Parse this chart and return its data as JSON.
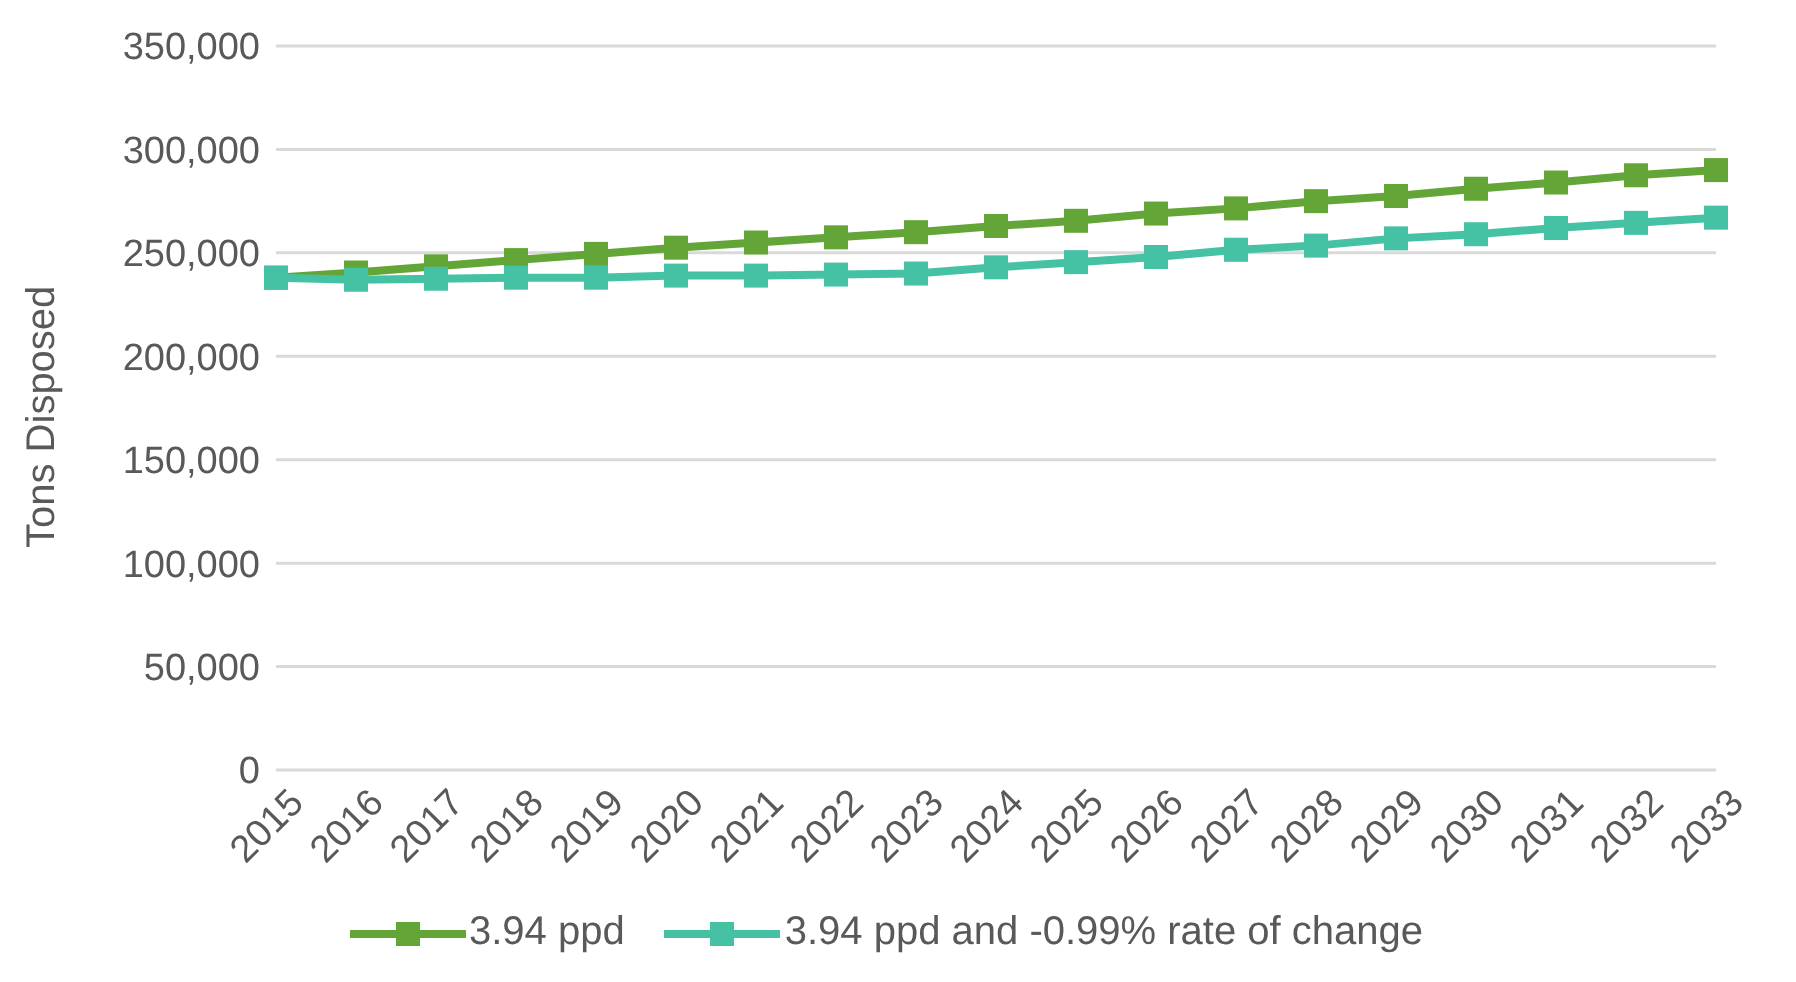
{
  "chart_data": {
    "type": "line",
    "ylabel": "Tons Disposed",
    "categories": [
      "2015",
      "2016",
      "2017",
      "2018",
      "2019",
      "2020",
      "2021",
      "2022",
      "2023",
      "2024",
      "2025",
      "2026",
      "2027",
      "2028",
      "2029",
      "2030",
      "2031",
      "2032",
      "2033"
    ],
    "series": [
      {
        "name": "3.94 ppd",
        "color": "#63a537",
        "values": [
          238000,
          240500,
          243500,
          246500,
          249500,
          252500,
          255000,
          257500,
          260000,
          263000,
          265500,
          269000,
          271500,
          275000,
          277500,
          281000,
          284000,
          287500,
          290000
        ]
      },
      {
        "name": "3.94 ppd and -0.99% rate of change",
        "color": "#45c1a4",
        "values": [
          238000,
          237000,
          237500,
          238000,
          238000,
          239000,
          239000,
          239500,
          240000,
          243000,
          245500,
          248000,
          251500,
          253500,
          257000,
          259000,
          262000,
          264500,
          267000
        ]
      }
    ],
    "ylim": [
      0,
      350000
    ],
    "yticks": [
      0,
      {
        "value": 50000,
        "label": "50,000"
      },
      {
        "value": 100000,
        "label": "100,000"
      },
      {
        "value": 150000,
        "label": "150,000"
      },
      {
        "value": 200000,
        "label": "200,000"
      },
      {
        "value": 250000,
        "label": "250,000"
      },
      {
        "value": 300000,
        "label": "300,000"
      },
      {
        "value": 350000,
        "label": "350,000"
      }
    ],
    "grid": "y",
    "legend": "bottom",
    "marker": "square",
    "line_style": "solid"
  }
}
